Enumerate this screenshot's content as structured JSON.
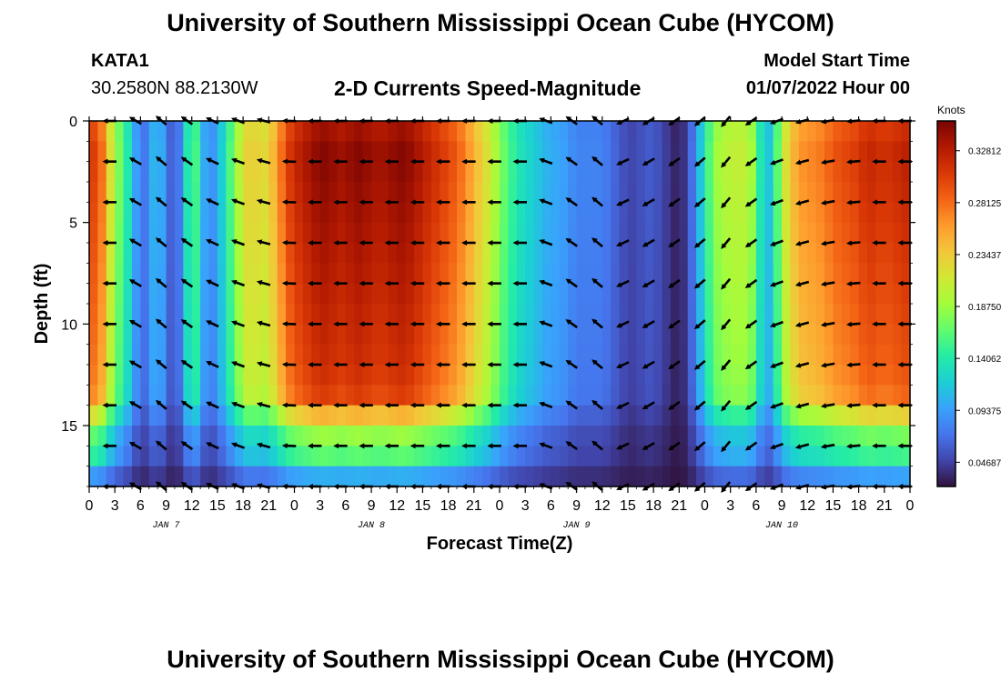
{
  "page": {
    "title": "University of Southern Mississippi Ocean Cube (HYCOM)",
    "footer_title": "University of Southern Mississippi Ocean Cube (HYCOM)",
    "station_id": "KATA1",
    "coordinates": "30.2580N  88.2130W",
    "chart_heading": "2-D Currents Speed-Magnitude",
    "model_start_label": "Model Start Time",
    "model_start_value": "01/07/2022 Hour 00"
  },
  "chart_data": {
    "type": "heatmap",
    "title": "2-D Currents Speed-Magnitude",
    "xlabel": "Forecast Time(Z)",
    "ylabel": "Depth (ft)",
    "x_hours": [
      0,
      96
    ],
    "y_depth_ft": [
      0,
      18
    ],
    "x_tick_labels": [
      "0",
      "3",
      "6",
      "9",
      "12",
      "15",
      "18",
      "21",
      "0",
      "3",
      "6",
      "9",
      "12",
      "15",
      "18",
      "21",
      "0",
      "3",
      "6",
      "9",
      "12",
      "15",
      "18",
      "21",
      "0",
      "3",
      "6",
      "9",
      "12",
      "15",
      "18",
      "21",
      "0"
    ],
    "day_labels": [
      {
        "hour": 9,
        "label": "JAN 7"
      },
      {
        "hour": 33,
        "label": "JAN 8"
      },
      {
        "hour": 57,
        "label": "JAN 9"
      },
      {
        "hour": 81,
        "label": "JAN 10"
      }
    ],
    "y_ticks": [
      0,
      5,
      10,
      15
    ],
    "colorbar": {
      "unit_label": "Knots",
      "min": 0.025,
      "max": 0.355,
      "tick_values": [
        0.04687,
        0.09375,
        0.14062,
        0.1875,
        0.23437,
        0.28125,
        0.32812
      ],
      "tick_labels": [
        "0.04687",
        "0.09375",
        "0.14062",
        "0.18750",
        "0.23437",
        "0.28125",
        "0.32812"
      ],
      "colors": [
        "#30123b",
        "#4145ab",
        "#4675ed",
        "#39a2fc",
        "#1bcfd4",
        "#24eca6",
        "#61fc6c",
        "#a4fc3b",
        "#d1e834",
        "#f3c63a",
        "#fe9b2d",
        "#f36315",
        "#d93806",
        "#b11901",
        "#7a0403"
      ]
    },
    "speed_profile_by_hour": [
      [
        0,
        0.3
      ],
      [
        1,
        0.31
      ],
      [
        2,
        0.25
      ],
      [
        3,
        0.19
      ],
      [
        4,
        0.16
      ],
      [
        5,
        0.12
      ],
      [
        6,
        0.07
      ],
      [
        7,
        0.08
      ],
      [
        8,
        0.13
      ],
      [
        9,
        0.07
      ],
      [
        10,
        0.06
      ],
      [
        11,
        0.09
      ],
      [
        12,
        0.19
      ],
      [
        13,
        0.12
      ],
      [
        14,
        0.08
      ],
      [
        15,
        0.1
      ],
      [
        16,
        0.14
      ],
      [
        17,
        0.18
      ],
      [
        18,
        0.22
      ],
      [
        19,
        0.24
      ],
      [
        20,
        0.22
      ],
      [
        21,
        0.23
      ],
      [
        22,
        0.26
      ],
      [
        23,
        0.3
      ],
      [
        24,
        0.32
      ],
      [
        25,
        0.33
      ],
      [
        26,
        0.34
      ],
      [
        27,
        0.35
      ],
      [
        28,
        0.35
      ],
      [
        29,
        0.34
      ],
      [
        30,
        0.34
      ],
      [
        31,
        0.35
      ],
      [
        32,
        0.35
      ],
      [
        33,
        0.34
      ],
      [
        34,
        0.34
      ],
      [
        35,
        0.34
      ],
      [
        36,
        0.35
      ],
      [
        37,
        0.35
      ],
      [
        38,
        0.34
      ],
      [
        39,
        0.33
      ],
      [
        40,
        0.32
      ],
      [
        41,
        0.31
      ],
      [
        42,
        0.3
      ],
      [
        43,
        0.29
      ],
      [
        44,
        0.27
      ],
      [
        45,
        0.25
      ],
      [
        46,
        0.23
      ],
      [
        47,
        0.21
      ],
      [
        48,
        0.18
      ],
      [
        49,
        0.16
      ],
      [
        50,
        0.14
      ],
      [
        51,
        0.13
      ],
      [
        52,
        0.12
      ],
      [
        53,
        0.11
      ],
      [
        54,
        0.1
      ],
      [
        55,
        0.1
      ],
      [
        56,
        0.09
      ],
      [
        57,
        0.08
      ],
      [
        58,
        0.08
      ],
      [
        59,
        0.08
      ],
      [
        60,
        0.08
      ],
      [
        61,
        0.07
      ],
      [
        62,
        0.06
      ],
      [
        63,
        0.05
      ],
      [
        64,
        0.05
      ],
      [
        65,
        0.06
      ],
      [
        66,
        0.06
      ],
      [
        67,
        0.05
      ],
      [
        68,
        0.04
      ],
      [
        69,
        0.03
      ],
      [
        70,
        0.05
      ],
      [
        71,
        0.09
      ],
      [
        72,
        0.14
      ],
      [
        73,
        0.18
      ],
      [
        74,
        0.2
      ],
      [
        75,
        0.2
      ],
      [
        76,
        0.21
      ],
      [
        77,
        0.2
      ],
      [
        78,
        0.18
      ],
      [
        79,
        0.1
      ],
      [
        80,
        0.13
      ],
      [
        81,
        0.2
      ],
      [
        82,
        0.24
      ],
      [
        83,
        0.26
      ],
      [
        84,
        0.27
      ],
      [
        85,
        0.27
      ],
      [
        86,
        0.28
      ],
      [
        87,
        0.29
      ],
      [
        88,
        0.3
      ],
      [
        89,
        0.3
      ],
      [
        90,
        0.31
      ],
      [
        91,
        0.32
      ],
      [
        92,
        0.32
      ],
      [
        93,
        0.31
      ],
      [
        94,
        0.32
      ],
      [
        95,
        0.32
      ],
      [
        96,
        0.33
      ]
    ],
    "depth_multiplier": [
      [
        0,
        0.95
      ],
      [
        1,
        1.0
      ],
      [
        2,
        1.0
      ],
      [
        3,
        0.99
      ],
      [
        4,
        0.98
      ],
      [
        5,
        0.97
      ],
      [
        6,
        0.96
      ],
      [
        7,
        0.95
      ],
      [
        8,
        0.94
      ],
      [
        9,
        0.93
      ],
      [
        10,
        0.92
      ],
      [
        11,
        0.91
      ],
      [
        12,
        0.9
      ],
      [
        13,
        0.88
      ],
      [
        14,
        0.85
      ],
      [
        15,
        0.52
      ],
      [
        16,
        0.48
      ],
      [
        17,
        0.38
      ],
      [
        18,
        0.1
      ]
    ],
    "arrows": {
      "hours": [
        2.5,
        5.5,
        8.5,
        11.5,
        14.5,
        17.5,
        20.5,
        23.5,
        26.5,
        29.5,
        32.5,
        35.5,
        38.5,
        41.5,
        44.5,
        47.5,
        50.5,
        53.5,
        56.5,
        59.5,
        62.5,
        65.5,
        68.5,
        71.5,
        74.5,
        77.5,
        80.5,
        83.5,
        86.5,
        89.5,
        92.5,
        95.5
      ],
      "depths_ft": [
        0,
        2,
        4,
        6,
        8,
        10,
        12,
        14,
        16,
        18
      ],
      "direction_deg_by_column": [
        180,
        150,
        140,
        145,
        155,
        160,
        165,
        178,
        180,
        180,
        180,
        180,
        180,
        180,
        180,
        180,
        180,
        160,
        145,
        140,
        205,
        210,
        215,
        220,
        230,
        215,
        200,
        195,
        190,
        185,
        180,
        180
      ]
    }
  }
}
